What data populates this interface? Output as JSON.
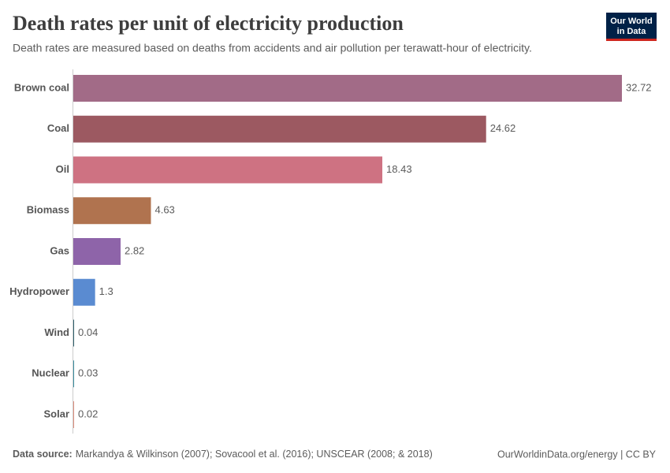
{
  "chart_data": {
    "type": "bar",
    "orientation": "horizontal",
    "title": "Death rates per unit of electricity production",
    "subtitle": "Death rates are measured based on deaths from accidents and air pollution per terawatt-hour of electricity.",
    "categories": [
      "Brown coal",
      "Coal",
      "Oil",
      "Biomass",
      "Gas",
      "Hydropower",
      "Wind",
      "Nuclear",
      "Solar"
    ],
    "values": [
      32.72,
      24.62,
      18.43,
      4.63,
      2.82,
      1.3,
      0.04,
      0.03,
      0.02
    ],
    "colors": [
      "#a26b87",
      "#9c5961",
      "#ce7282",
      "#b0734f",
      "#8e64a9",
      "#5a8bd1",
      "#2f5f6c",
      "#3b8ea0",
      "#de8f7f"
    ],
    "source_label": "Data source:",
    "source": "Markandya & Wilkinson (2007); Sovacool et al. (2016); UNSCEAR (2008; & 2018)",
    "credit": "OurWorldinData.org/energy | CC BY",
    "logo": [
      "Our World",
      "in Data"
    ]
  }
}
